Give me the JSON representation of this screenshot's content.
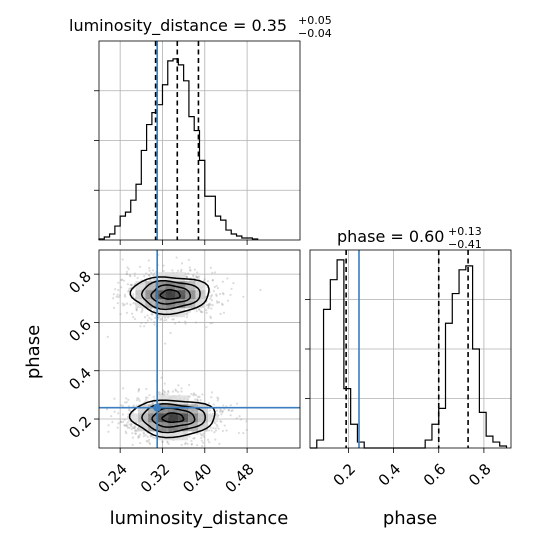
{
  "chart_data": {
    "type": "corner",
    "parameters": [
      "luminosity_distance",
      "phase"
    ],
    "panels": [
      {
        "id": "hist_luminosity_distance",
        "type": "histogram",
        "title_base": "luminosity_distance = 0.35",
        "title_sup": "+0.05",
        "title_sub": "−0.04",
        "xlim": [
          0.2,
          0.58
        ],
        "x_ticks": [
          0.24,
          0.32,
          0.4,
          0.48
        ],
        "ylim": [
          0,
          1.0
        ],
        "y_ticks": [
          0.25,
          0.5,
          0.75
        ],
        "bin_edges": [
          0.2,
          0.21,
          0.22,
          0.23,
          0.24,
          0.25,
          0.26,
          0.27,
          0.28,
          0.29,
          0.3,
          0.31,
          0.32,
          0.33,
          0.34,
          0.35,
          0.36,
          0.37,
          0.38,
          0.39,
          0.4,
          0.41,
          0.42,
          0.43,
          0.44,
          0.45,
          0.46,
          0.47,
          0.48,
          0.49,
          0.5
        ],
        "counts": [
          0.005,
          0.015,
          0.03,
          0.07,
          0.12,
          0.14,
          0.2,
          0.28,
          0.45,
          0.58,
          0.64,
          0.68,
          0.78,
          0.9,
          0.91,
          0.88,
          0.8,
          0.62,
          0.55,
          0.4,
          0.22,
          0.22,
          0.12,
          0.1,
          0.05,
          0.03,
          0.02,
          0.01,
          0.01,
          0.005
        ],
        "quantiles": [
          0.307,
          0.348,
          0.388
        ],
        "truth": 0.31
      },
      {
        "id": "hist_phase",
        "type": "histogram",
        "title_base": "phase = 0.60",
        "title_sup": "+0.13",
        "title_sub": "−0.41",
        "xlim": [
          0.03,
          0.92
        ],
        "x_ticks": [
          0.2,
          0.4,
          0.6,
          0.8
        ],
        "ylim": [
          0,
          1.0
        ],
        "y_ticks": [
          0.25,
          0.5,
          0.75
        ],
        "bin_edges": [
          0.03,
          0.06,
          0.09,
          0.12,
          0.15,
          0.18,
          0.21,
          0.24,
          0.27,
          0.3,
          0.33,
          0.36,
          0.39,
          0.42,
          0.45,
          0.48,
          0.51,
          0.54,
          0.57,
          0.6,
          0.63,
          0.66,
          0.69,
          0.72,
          0.75,
          0.78,
          0.81,
          0.84,
          0.87,
          0.9
        ],
        "counts": [
          0.0,
          0.04,
          0.7,
          0.85,
          0.95,
          0.3,
          0.12,
          0.03,
          0.0,
          0.0,
          0.0,
          0.0,
          0.0,
          0.0,
          0.0,
          0.0,
          0.0,
          0.04,
          0.12,
          0.2,
          0.63,
          0.78,
          0.9,
          0.92,
          0.5,
          0.18,
          0.06,
          0.03,
          0.01
        ],
        "quantiles": [
          0.19,
          0.6,
          0.73
        ],
        "truth": 0.247
      },
      {
        "id": "joint",
        "type": "2d-density",
        "x_param": "luminosity_distance",
        "y_param": "phase",
        "xlim": [
          0.2,
          0.58
        ],
        "ylim": [
          0.08,
          0.9
        ],
        "x_ticks": [
          0.24,
          0.32,
          0.4,
          0.48
        ],
        "y_ticks": [
          0.2,
          0.4,
          0.6,
          0.8
        ],
        "clusters": [
          {
            "cx": 0.335,
            "cy": 0.715,
            "sx": 0.035,
            "sy": 0.04,
            "weight": 0.5
          },
          {
            "cx": 0.34,
            "cy": 0.205,
            "sx": 0.038,
            "sy": 0.04,
            "weight": 0.5
          }
        ],
        "truth": [
          0.31,
          0.247
        ],
        "grid": true
      }
    ]
  }
}
